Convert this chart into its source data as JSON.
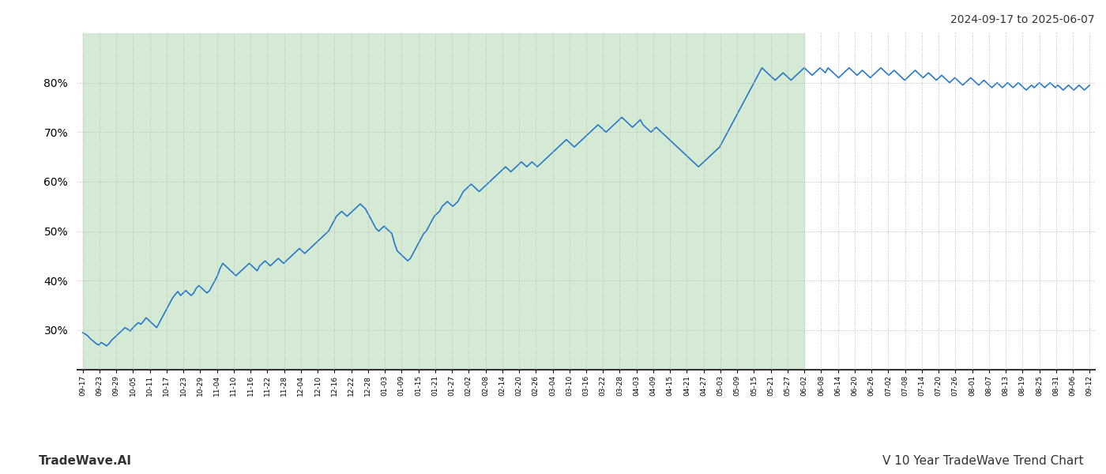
{
  "title_right": "2024-09-17 to 2025-06-07",
  "footer_left": "TradeWave.AI",
  "footer_right": "V 10 Year TradeWave Trend Chart",
  "line_color": "#2878c8",
  "line_width": 1.2,
  "shaded_region_color": "#d4ead4",
  "shaded_region_alpha": 1.0,
  "background_color": "#ffffff",
  "grid_color": "#bbbbbb",
  "ytick_values": [
    30,
    40,
    50,
    60,
    70,
    80
  ],
  "ymin": 22,
  "ymax": 90,
  "x_labels": [
    "09-17",
    "09-23",
    "09-29",
    "10-05",
    "10-11",
    "10-17",
    "10-23",
    "10-29",
    "11-04",
    "11-10",
    "11-16",
    "11-22",
    "11-28",
    "12-04",
    "12-10",
    "12-16",
    "12-22",
    "12-28",
    "01-03",
    "01-09",
    "01-15",
    "01-21",
    "01-27",
    "02-02",
    "02-08",
    "02-14",
    "02-20",
    "02-26",
    "03-04",
    "03-10",
    "03-16",
    "03-22",
    "03-28",
    "04-03",
    "04-09",
    "04-15",
    "04-21",
    "04-27",
    "05-03",
    "05-09",
    "05-15",
    "05-21",
    "05-27",
    "06-02",
    "06-08",
    "06-14",
    "06-20",
    "06-26",
    "07-02",
    "07-08",
    "07-14",
    "07-20",
    "07-26",
    "08-01",
    "08-07",
    "08-13",
    "08-19",
    "08-25",
    "08-31",
    "09-06",
    "09-12"
  ],
  "shaded_label_end": "06-02",
  "y_values": [
    29.5,
    29.2,
    28.8,
    28.2,
    27.8,
    27.3,
    27.0,
    27.5,
    27.2,
    26.8,
    27.3,
    28.0,
    28.5,
    29.0,
    29.5,
    30.0,
    30.5,
    30.2,
    29.8,
    30.5,
    31.0,
    31.5,
    31.2,
    31.8,
    32.5,
    32.0,
    31.5,
    31.0,
    30.5,
    31.5,
    32.5,
    33.5,
    34.5,
    35.5,
    36.5,
    37.2,
    37.8,
    37.0,
    37.5,
    38.0,
    37.5,
    37.0,
    37.5,
    38.5,
    39.0,
    38.5,
    38.0,
    37.5,
    38.0,
    39.0,
    40.0,
    41.0,
    42.5,
    43.5,
    43.0,
    42.5,
    42.0,
    41.5,
    41.0,
    41.5,
    42.0,
    42.5,
    43.0,
    43.5,
    43.0,
    42.5,
    42.0,
    43.0,
    43.5,
    44.0,
    43.5,
    43.0,
    43.5,
    44.0,
    44.5,
    44.0,
    43.5,
    44.0,
    44.5,
    45.0,
    45.5,
    46.0,
    46.5,
    46.0,
    45.5,
    46.0,
    46.5,
    47.0,
    47.5,
    48.0,
    48.5,
    49.0,
    49.5,
    50.0,
    51.0,
    52.0,
    53.0,
    53.5,
    54.0,
    53.5,
    53.0,
    53.5,
    54.0,
    54.5,
    55.0,
    55.5,
    55.0,
    54.5,
    53.5,
    52.5,
    51.5,
    50.5,
    50.0,
    50.5,
    51.0,
    50.5,
    50.0,
    49.5,
    47.5,
    46.0,
    45.5,
    45.0,
    44.5,
    44.0,
    44.5,
    45.5,
    46.5,
    47.5,
    48.5,
    49.5,
    50.0,
    51.0,
    52.0,
    53.0,
    53.5,
    54.0,
    55.0,
    55.5,
    56.0,
    55.5,
    55.0,
    55.5,
    56.0,
    57.0,
    58.0,
    58.5,
    59.0,
    59.5,
    59.0,
    58.5,
    58.0,
    58.5,
    59.0,
    59.5,
    60.0,
    60.5,
    61.0,
    61.5,
    62.0,
    62.5,
    63.0,
    62.5,
    62.0,
    62.5,
    63.0,
    63.5,
    64.0,
    63.5,
    63.0,
    63.5,
    64.0,
    63.5,
    63.0,
    63.5,
    64.0,
    64.5,
    65.0,
    65.5,
    66.0,
    66.5,
    67.0,
    67.5,
    68.0,
    68.5,
    68.0,
    67.5,
    67.0,
    67.5,
    68.0,
    68.5,
    69.0,
    69.5,
    70.0,
    70.5,
    71.0,
    71.5,
    71.0,
    70.5,
    70.0,
    70.5,
    71.0,
    71.5,
    72.0,
    72.5,
    73.0,
    72.5,
    72.0,
    71.5,
    71.0,
    71.5,
    72.0,
    72.5,
    71.5,
    71.0,
    70.5,
    70.0,
    70.5,
    71.0,
    70.5,
    70.0,
    69.5,
    69.0,
    68.5,
    68.0,
    67.5,
    67.0,
    66.5,
    66.0,
    65.5,
    65.0,
    64.5,
    64.0,
    63.5,
    63.0,
    63.5,
    64.0,
    64.5,
    65.0,
    65.5,
    66.0,
    66.5,
    67.0,
    68.0,
    69.0,
    70.0,
    71.0,
    72.0,
    73.0,
    74.0,
    75.0,
    76.0,
    77.0,
    78.0,
    79.0,
    80.0,
    81.0,
    82.0,
    83.0,
    82.5,
    82.0,
    81.5,
    81.0,
    80.5,
    81.0,
    81.5,
    82.0,
    81.5,
    81.0,
    80.5,
    81.0,
    81.5,
    82.0,
    82.5,
    83.0,
    82.5,
    82.0,
    81.5,
    82.0,
    82.5,
    83.0,
    82.5,
    82.0,
    83.0,
    82.5,
    82.0,
    81.5,
    81.0,
    81.5,
    82.0,
    82.5,
    83.0,
    82.5,
    82.0,
    81.5,
    82.0,
    82.5,
    82.0,
    81.5,
    81.0,
    81.5,
    82.0,
    82.5,
    83.0,
    82.5,
    82.0,
    81.5,
    82.0,
    82.5,
    82.0,
    81.5,
    81.0,
    80.5,
    81.0,
    81.5,
    82.0,
    82.5,
    82.0,
    81.5,
    81.0,
    81.5,
    82.0,
    81.5,
    81.0,
    80.5,
    81.0,
    81.5,
    81.0,
    80.5,
    80.0,
    80.5,
    81.0,
    80.5,
    80.0,
    79.5,
    80.0,
    80.5,
    81.0,
    80.5,
    80.0,
    79.5,
    80.0,
    80.5,
    80.0,
    79.5,
    79.0,
    79.5,
    80.0,
    79.5,
    79.0,
    79.5,
    80.0,
    79.5,
    79.0,
    79.5,
    80.0,
    79.5,
    79.0,
    78.5,
    79.0,
    79.5,
    79.0,
    79.5,
    80.0,
    79.5,
    79.0,
    79.5,
    80.0,
    79.5,
    79.0,
    79.5,
    79.0,
    78.5,
    79.0,
    79.5,
    79.0,
    78.5,
    79.0,
    79.5,
    79.0,
    78.5,
    79.0,
    79.5
  ]
}
